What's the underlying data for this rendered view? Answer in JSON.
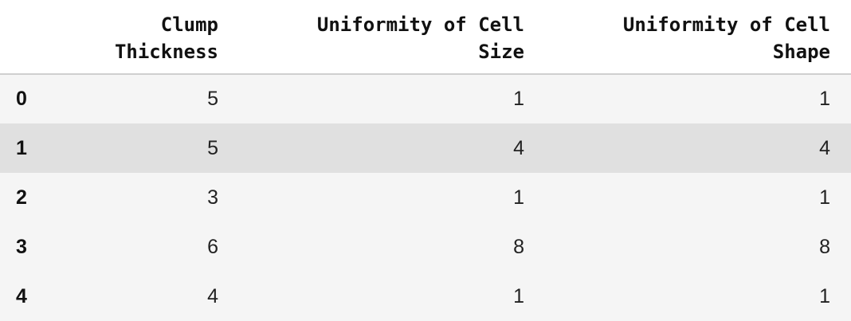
{
  "table": {
    "columns": [
      {
        "key": "clump_thickness",
        "label_lines": [
          "Clump",
          "Thickness"
        ]
      },
      {
        "key": "uniformity_of_cell_size",
        "label_lines": [
          "Uniformity of Cell",
          "Size"
        ]
      },
      {
        "key": "uniformity_of_cell_shape",
        "label_lines": [
          "Uniformity of Cell",
          "Shape"
        ]
      }
    ],
    "rows": [
      {
        "index": "0",
        "values": [
          "5",
          "1",
          "1"
        ]
      },
      {
        "index": "1",
        "values": [
          "5",
          "4",
          "4"
        ]
      },
      {
        "index": "2",
        "values": [
          "3",
          "1",
          "1"
        ]
      },
      {
        "index": "3",
        "values": [
          "6",
          "8",
          "8"
        ]
      },
      {
        "index": "4",
        "values": [
          "4",
          "1",
          "1"
        ]
      }
    ]
  },
  "colors": {
    "row_odd": "#f5f5f5",
    "row_even": "#e0e0e0",
    "header_border": "#cfcfcf"
  }
}
